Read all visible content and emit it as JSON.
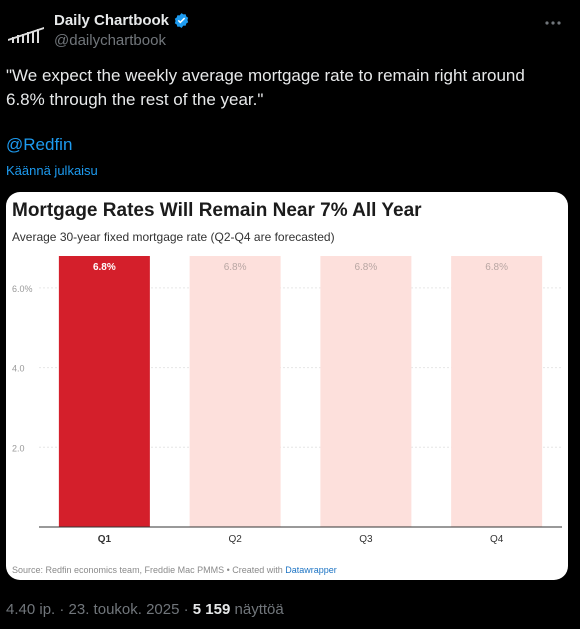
{
  "tweet": {
    "author_name": "Daily Chartbook",
    "author_handle": "@dailychartbook",
    "text": "\"We expect the weekly average mortgage rate to remain right around 6.8% through the rest of the year.\"",
    "mention": "@Redfin",
    "translate_label": "Käännä julkaisu",
    "timestamp": "4.40 ip. · 23. toukok. 2025 · ",
    "views_count": "5 159",
    "views_label": " näyttöä"
  },
  "colors": {
    "verified": "#1d9bf0",
    "actual_bar": "#d41f2b",
    "forecast_bar": "#fde0dc"
  },
  "icons": {
    "avatar": "chartbook-logo",
    "verified": "verified-badge-icon",
    "more": "more-icon"
  },
  "chart": {
    "title": "Mortgage Rates Will Remain Near 7% All Year",
    "subtitle": "Average 30-year fixed mortgage rate (Q2-Q4 are forecasted)",
    "source_text": "Source: Redfin economics team, Freddie Mac PMMS • Created with ",
    "source_link": "Datawrapper"
  },
  "chart_data": {
    "type": "bar",
    "title": "Mortgage Rates Will Remain Near 7% All Year",
    "subtitle": "Average 30-year fixed mortgage rate (Q2-Q4 are forecasted)",
    "categories": [
      "Q1",
      "Q2",
      "Q3",
      "Q4"
    ],
    "values": [
      6.8,
      6.8,
      6.8,
      6.8
    ],
    "value_labels": [
      "6.8%",
      "6.8%",
      "6.8%",
      "6.8%"
    ],
    "forecast": [
      false,
      true,
      true,
      true
    ],
    "ylim": [
      0,
      6.8
    ],
    "yticks": [
      2.0,
      4.0,
      6.0
    ],
    "ytick_labels": [
      "2.0",
      "4.0",
      "6.0%"
    ],
    "grid": true
  }
}
